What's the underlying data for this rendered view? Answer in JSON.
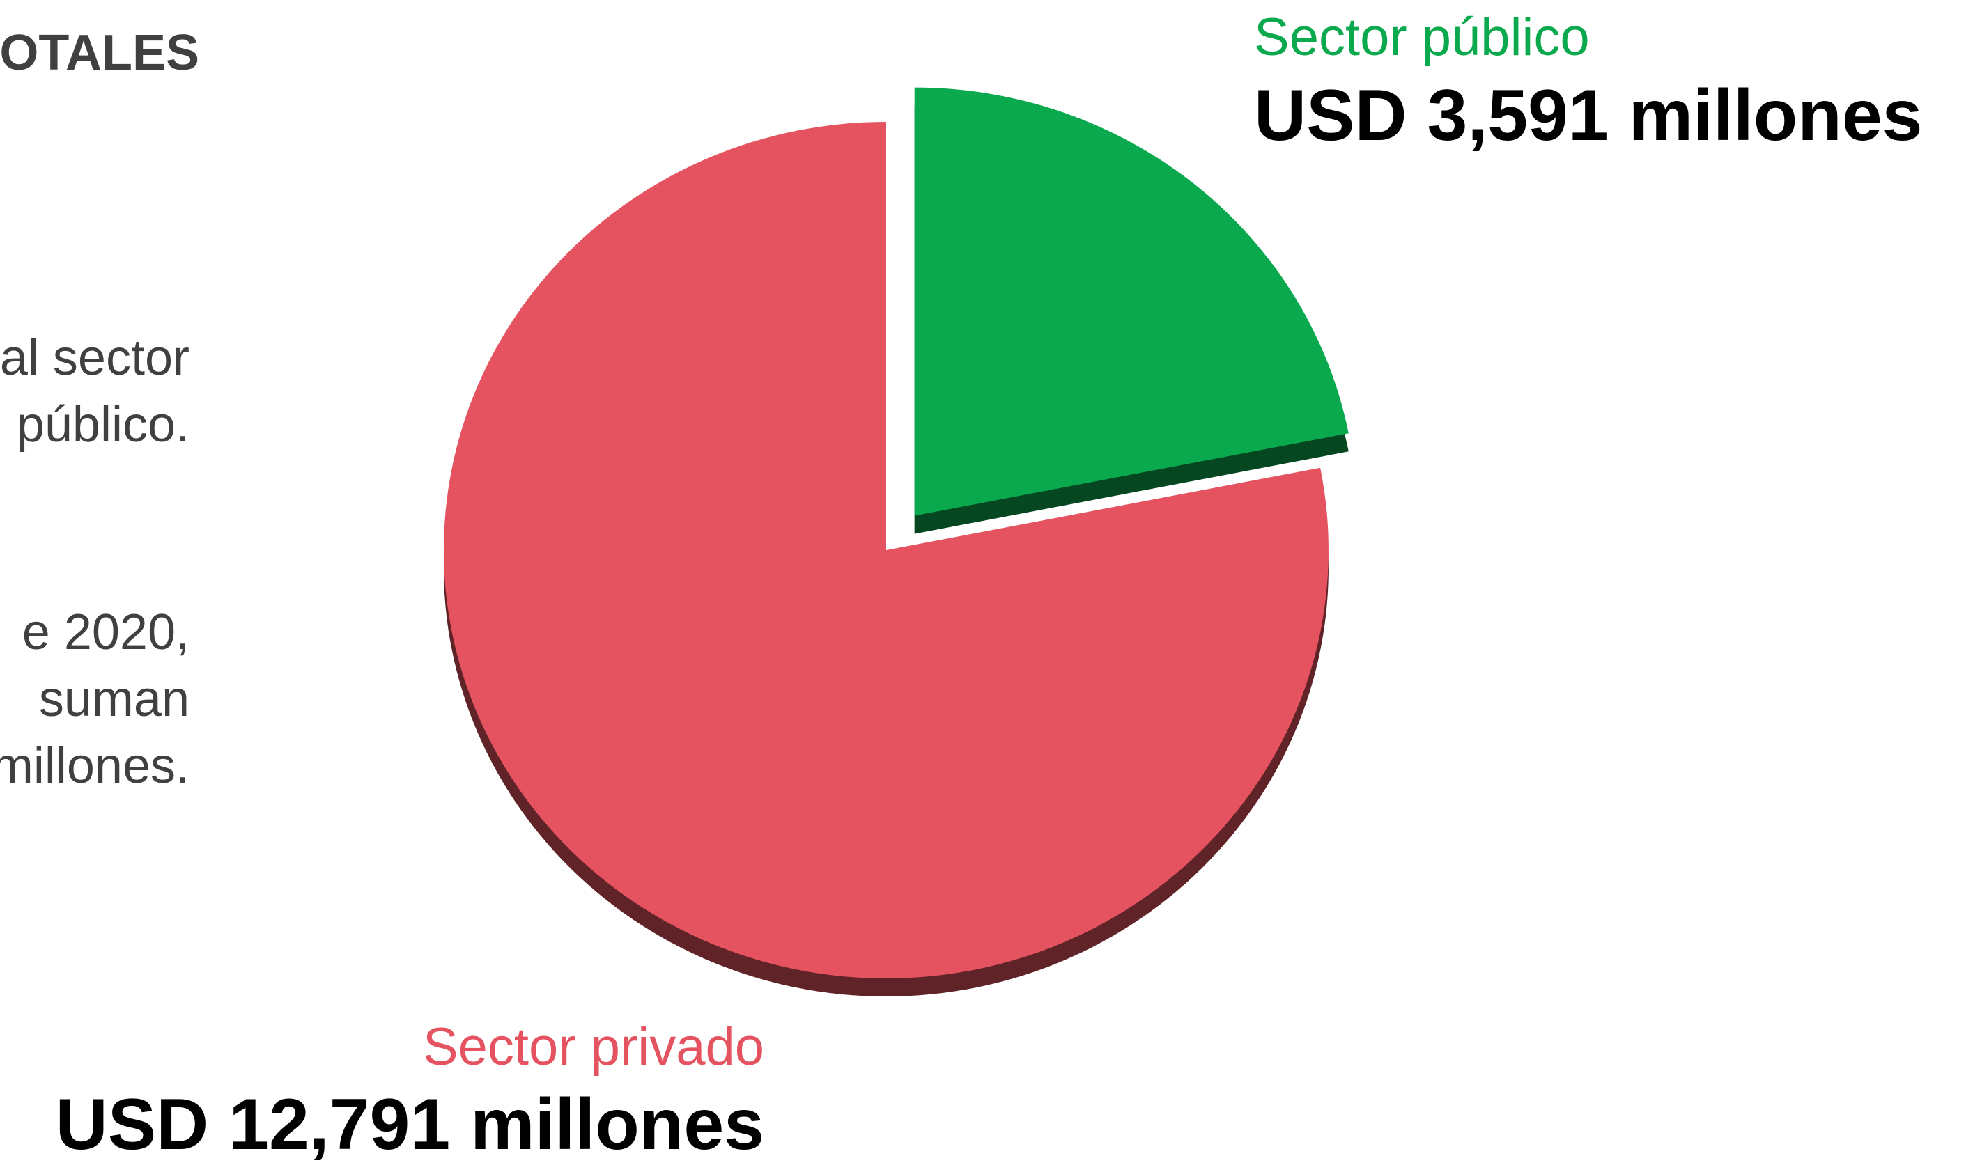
{
  "text": {
    "heading": "OTALES",
    "paragraph_1": [
      "al sector",
      "público."
    ],
    "paragraph_2": [
      "e 2020,",
      "suman",
      "millones."
    ]
  },
  "chart_data": {
    "type": "pie",
    "title": "",
    "slices": [
      {
        "label": "Sector público",
        "value": 3591,
        "value_label": "USD 3,591 millones",
        "color": "#0aa94e",
        "exploded": true
      },
      {
        "label": "Sector privado",
        "value": 12791,
        "value_label": "USD 12,791 millones",
        "color": "#e4535f",
        "exploded": false
      }
    ],
    "unit": "USD millones",
    "style": "3d"
  }
}
